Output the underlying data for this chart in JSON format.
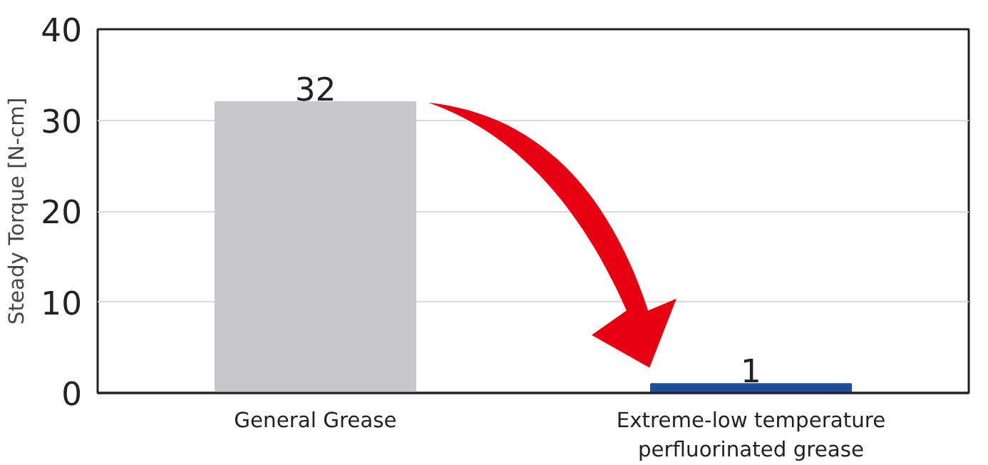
{
  "chart_data": {
    "type": "bar",
    "ylabel": "Steady Torque [N-cm]",
    "categories": [
      "General Grease",
      "Extreme-low temperature perfluorinated grease"
    ],
    "values": [
      32,
      1
    ],
    "colors": [
      "#c8c8ca",
      "#1f4e9a"
    ],
    "ylim": [
      0,
      40
    ],
    "yticks": [
      0,
      10,
      20,
      30,
      40
    ],
    "grid": "y",
    "data_labels": true
  }
}
